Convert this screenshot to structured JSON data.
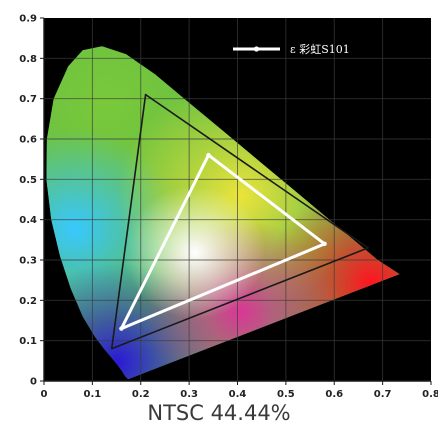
{
  "chart_data": {
    "type": "scatter",
    "title": "",
    "caption": "NTSC 44.44%",
    "xlabel": "",
    "ylabel": "",
    "xlim": [
      0,
      0.8
    ],
    "ylim": [
      0,
      0.9
    ],
    "x_ticks": [
      "0",
      "0.1",
      "0.2",
      "0.3",
      "0.4",
      "0.5",
      "0.6",
      "0.7",
      "0.8"
    ],
    "y_ticks": [
      "0",
      "0.1",
      "0.2",
      "0.3",
      "0.4",
      "0.5",
      "0.6",
      "0.7",
      "0.8",
      "0.9"
    ],
    "grid": true,
    "legend_position": "top-right",
    "legend": [
      {
        "label": "ε 彩虹S101",
        "color": "#ffffff"
      }
    ],
    "series": [
      {
        "name": "ε 彩虹S101",
        "color": "#ffffff",
        "closed": true,
        "points": [
          [
            0.34,
            0.56
          ],
          [
            0.58,
            0.34
          ],
          [
            0.16,
            0.13
          ]
        ]
      },
      {
        "color": "#1a1a1a",
        "closed": true,
        "points": [
          [
            0.21,
            0.71
          ],
          [
            0.67,
            0.33
          ],
          [
            0.14,
            0.08
          ]
        ]
      }
    ],
    "spectral_locus": [
      [
        0.175,
        0.005
      ],
      [
        0.174,
        0.005
      ],
      [
        0.172,
        0.007
      ],
      [
        0.169,
        0.01
      ],
      [
        0.166,
        0.015
      ],
      [
        0.161,
        0.025
      ],
      [
        0.152,
        0.04
      ],
      [
        0.138,
        0.06
      ],
      [
        0.124,
        0.08
      ],
      [
        0.105,
        0.11
      ],
      [
        0.08,
        0.16
      ],
      [
        0.055,
        0.23
      ],
      [
        0.033,
        0.31
      ],
      [
        0.015,
        0.4
      ],
      [
        0.005,
        0.5
      ],
      [
        0.006,
        0.6
      ],
      [
        0.02,
        0.7
      ],
      [
        0.05,
        0.78
      ],
      [
        0.08,
        0.82
      ],
      [
        0.12,
        0.83
      ],
      [
        0.17,
        0.81
      ],
      [
        0.23,
        0.76
      ],
      [
        0.3,
        0.69
      ],
      [
        0.37,
        0.62
      ],
      [
        0.45,
        0.54
      ],
      [
        0.52,
        0.47
      ],
      [
        0.58,
        0.41
      ],
      [
        0.64,
        0.35
      ],
      [
        0.69,
        0.3
      ],
      [
        0.735,
        0.265
      ]
    ],
    "colors": {
      "background": "#000000",
      "panel": "#ffffff",
      "white_triangle": "#ffffff",
      "ntsc_triangle": "#1a1a1a"
    }
  }
}
